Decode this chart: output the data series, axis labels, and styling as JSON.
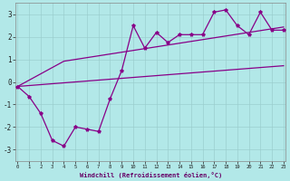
{
  "xlabel": "Windchill (Refroidissement éolien,°C)",
  "background_color": "#b2e8e8",
  "line_color": "#880088",
  "x_data": [
    0,
    1,
    2,
    3,
    4,
    5,
    6,
    7,
    8,
    9,
    10,
    11,
    12,
    13,
    14,
    15,
    16,
    17,
    18,
    19,
    20,
    21,
    22,
    23
  ],
  "y_main": [
    -0.2,
    -0.65,
    -1.4,
    -2.6,
    -2.85,
    -2.0,
    -2.1,
    -2.2,
    -0.75,
    0.5,
    2.5,
    1.5,
    2.2,
    1.75,
    2.1,
    2.1,
    2.1,
    3.1,
    3.2,
    2.5,
    2.1,
    3.1,
    2.3,
    2.3
  ],
  "y_upper": [
    -0.2,
    0.08,
    0.36,
    0.64,
    0.92,
    1.0,
    1.08,
    1.16,
    1.24,
    1.32,
    1.4,
    1.48,
    1.56,
    1.64,
    1.72,
    1.8,
    1.88,
    1.96,
    2.04,
    2.12,
    2.2,
    2.28,
    2.36,
    2.44
  ],
  "y_lower": [
    -0.2,
    -0.16,
    -0.12,
    -0.08,
    -0.04,
    0.0,
    0.04,
    0.08,
    0.12,
    0.16,
    0.2,
    0.24,
    0.28,
    0.32,
    0.36,
    0.4,
    0.44,
    0.48,
    0.52,
    0.56,
    0.6,
    0.64,
    0.68,
    0.72
  ],
  "ylim": [
    -3.5,
    3.5
  ],
  "yticks": [
    -3,
    -2,
    -1,
    0,
    1,
    2,
    3
  ],
  "xlim": [
    -0.2,
    23.2
  ],
  "xticks": [
    0,
    1,
    2,
    3,
    4,
    5,
    6,
    7,
    8,
    9,
    10,
    11,
    12,
    13,
    14,
    15,
    16,
    17,
    18,
    19,
    20,
    21,
    22,
    23
  ]
}
